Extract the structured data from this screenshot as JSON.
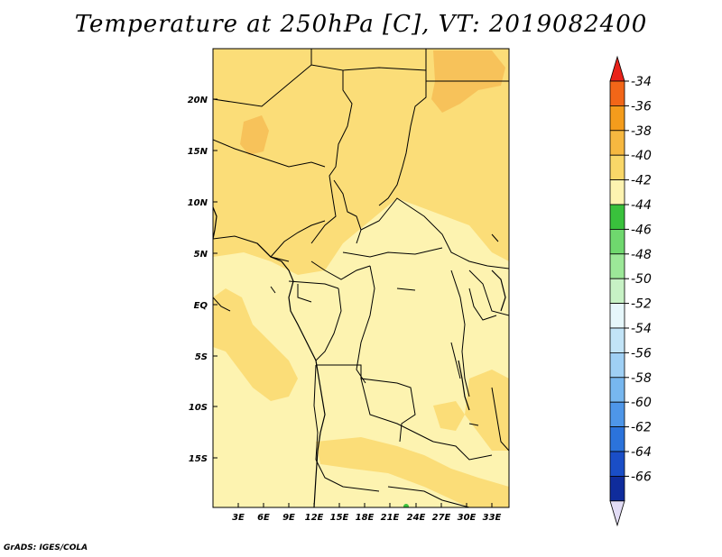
{
  "title": "Temperature at 250hPa [C], VT: 2019082400",
  "footer": "GrADS: IGES/COLA",
  "map": {
    "lat_labels": [
      "20N",
      "15N",
      "10N",
      "5N",
      "EQ",
      "5S",
      "10S",
      "15S"
    ],
    "lon_labels": [
      "3E",
      "6E",
      "9E",
      "12E",
      "15E",
      "18E",
      "21E",
      "24E",
      "27E",
      "30E",
      "33E"
    ],
    "background_color": "#fdf3b0"
  },
  "colorbar": {
    "labels": [
      "-34",
      "-36",
      "-38",
      "-40",
      "-42",
      "-44",
      "-46",
      "-48",
      "-50",
      "-52",
      "-54",
      "-56",
      "-58",
      "-60",
      "-62",
      "-64",
      "-66"
    ],
    "colors": [
      "#e8221a",
      "#f26618",
      "#f49c1c",
      "#f6b840",
      "#f9d768",
      "#fdf3b0",
      "#39c13c",
      "#6fd86e",
      "#9ce898",
      "#c7f2c5",
      "#e6f7fb",
      "#c2e4f7",
      "#9fd0f5",
      "#77b7ef",
      "#4e96e8",
      "#2b73db",
      "#1a4ec7",
      "#0f2c9c",
      "#e2dcf5"
    ]
  }
}
